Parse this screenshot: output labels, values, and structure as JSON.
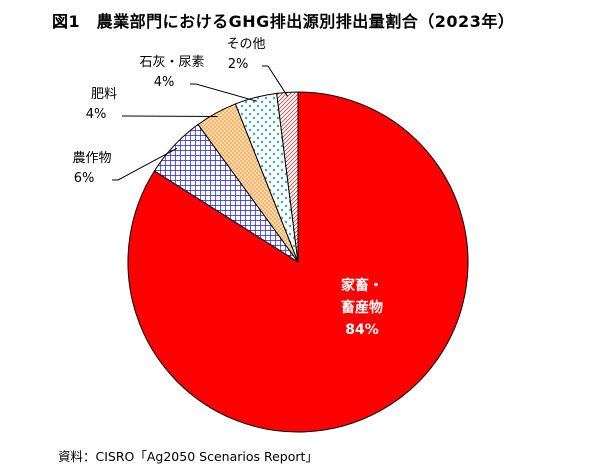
{
  "title": "図1　農業部門におけるGHG排出源別排出量割合（2023年）",
  "source": "資料：CISRO「Ag2050 Scenarios Report」",
  "chart_data": {
    "type": "pie",
    "title": "図1　農業部門におけるGHG排出源別排出量割合（2023年）",
    "slices": [
      {
        "name": "家畜・畜産物",
        "name_lines": [
          "家畜・",
          "畜産物"
        ],
        "value": 84,
        "label": "84%",
        "color": "#ff0000",
        "pattern": "solid"
      },
      {
        "name": "農作物",
        "name_lines": [
          "農作物"
        ],
        "value": 6,
        "label": "6%",
        "color": "#0000ff",
        "pattern": "grid"
      },
      {
        "name": "肥料",
        "name_lines": [
          "肥料"
        ],
        "value": 4,
        "label": "4%",
        "color": "#f5a623",
        "pattern": "dots"
      },
      {
        "name": "石灰・尿素",
        "name_lines": [
          "石灰・尿素"
        ],
        "value": 4,
        "label": "4%",
        "color": "#2fa8a0",
        "pattern": "cross"
      },
      {
        "name": "その他",
        "name_lines": [
          "その他"
        ],
        "value": 2,
        "label": "2%",
        "color": "#c0504d",
        "pattern": "diagonal"
      }
    ],
    "start_angle_deg": 0,
    "direction": "clockwise",
    "legend": "none",
    "labels": "callout"
  }
}
